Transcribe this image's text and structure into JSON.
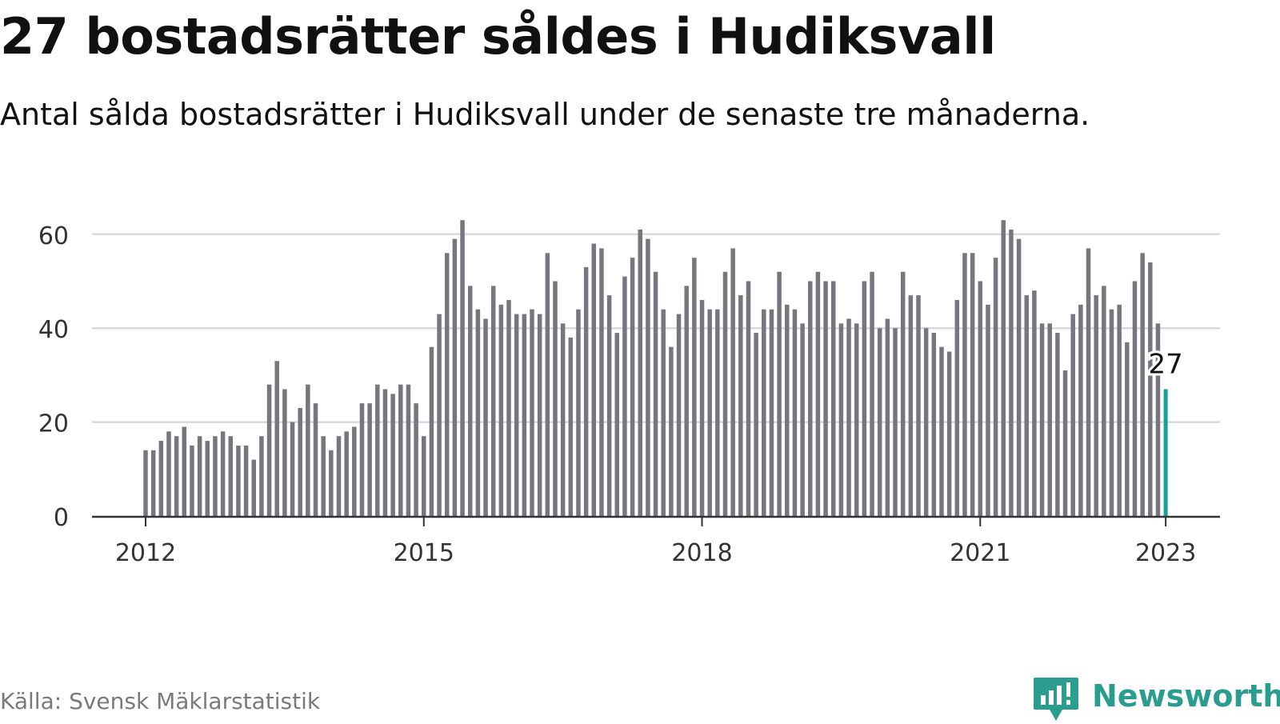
{
  "header": {
    "title": "27 bostadsrätter såldes i Hudiksvall",
    "subtitle": "Antal sålda bostadsrätter i Hudiksvall under de senaste tre månaderna."
  },
  "footer": {
    "source": "Källa: Svensk Mäklarstatistik",
    "brand": "Newsworthy"
  },
  "colors": {
    "bar": "#76767e",
    "highlight": "#16a196",
    "grid": "#d9d9d9",
    "axis": "#333333",
    "brand": "#2a9d8f"
  },
  "chart_data": {
    "type": "bar",
    "x_start": "2012-01",
    "x_end": "2023-01",
    "x_ticks": [
      "2012",
      "2015",
      "2018",
      "2021",
      "2023"
    ],
    "y_ticks": [
      0,
      20,
      40,
      60
    ],
    "ylim": [
      0,
      67
    ],
    "grid": true,
    "highlight_label": "27",
    "values": [
      14,
      14,
      16,
      18,
      17,
      19,
      15,
      17,
      16,
      17,
      18,
      17,
      15,
      15,
      12,
      17,
      28,
      33,
      27,
      20,
      23,
      28,
      24,
      17,
      14,
      17,
      18,
      19,
      24,
      24,
      28,
      27,
      26,
      28,
      28,
      24,
      17,
      36,
      43,
      56,
      59,
      63,
      49,
      44,
      42,
      49,
      45,
      46,
      43,
      43,
      44,
      43,
      56,
      50,
      41,
      38,
      44,
      53,
      58,
      57,
      47,
      39,
      51,
      55,
      61,
      59,
      52,
      44,
      36,
      43,
      49,
      55,
      46,
      44,
      44,
      52,
      57,
      47,
      50,
      39,
      44,
      44,
      52,
      45,
      44,
      41,
      50,
      52,
      50,
      50,
      41,
      42,
      41,
      50,
      52,
      40,
      42,
      40,
      52,
      47,
      47,
      40,
      39,
      36,
      35,
      46,
      56,
      56,
      50,
      45,
      55,
      63,
      61,
      59,
      47,
      48,
      41,
      41,
      39,
      31,
      43,
      45,
      57,
      47,
      49,
      44,
      45,
      37,
      50,
      56,
      54,
      41,
      27
    ]
  }
}
